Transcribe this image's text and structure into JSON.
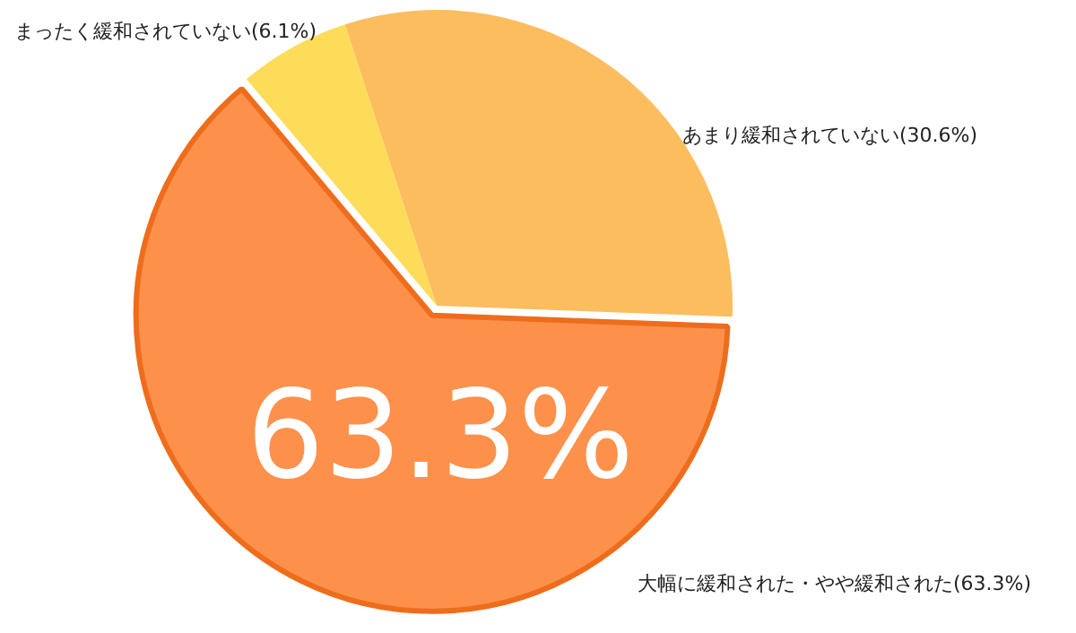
{
  "chart_data": {
    "type": "pie",
    "categories": [
      "まったく緩和されていない(6.1%)",
      "あまり緩和されていない(30.6%)",
      "大幅に緩和された・やや緩和された(63.3%)"
    ],
    "values": [
      6.1,
      30.6,
      63.3
    ],
    "colors": [
      "#fddc5a",
      "#fbbd5e",
      "#fd914c"
    ],
    "annotations": [
      "63.3%"
    ]
  }
}
